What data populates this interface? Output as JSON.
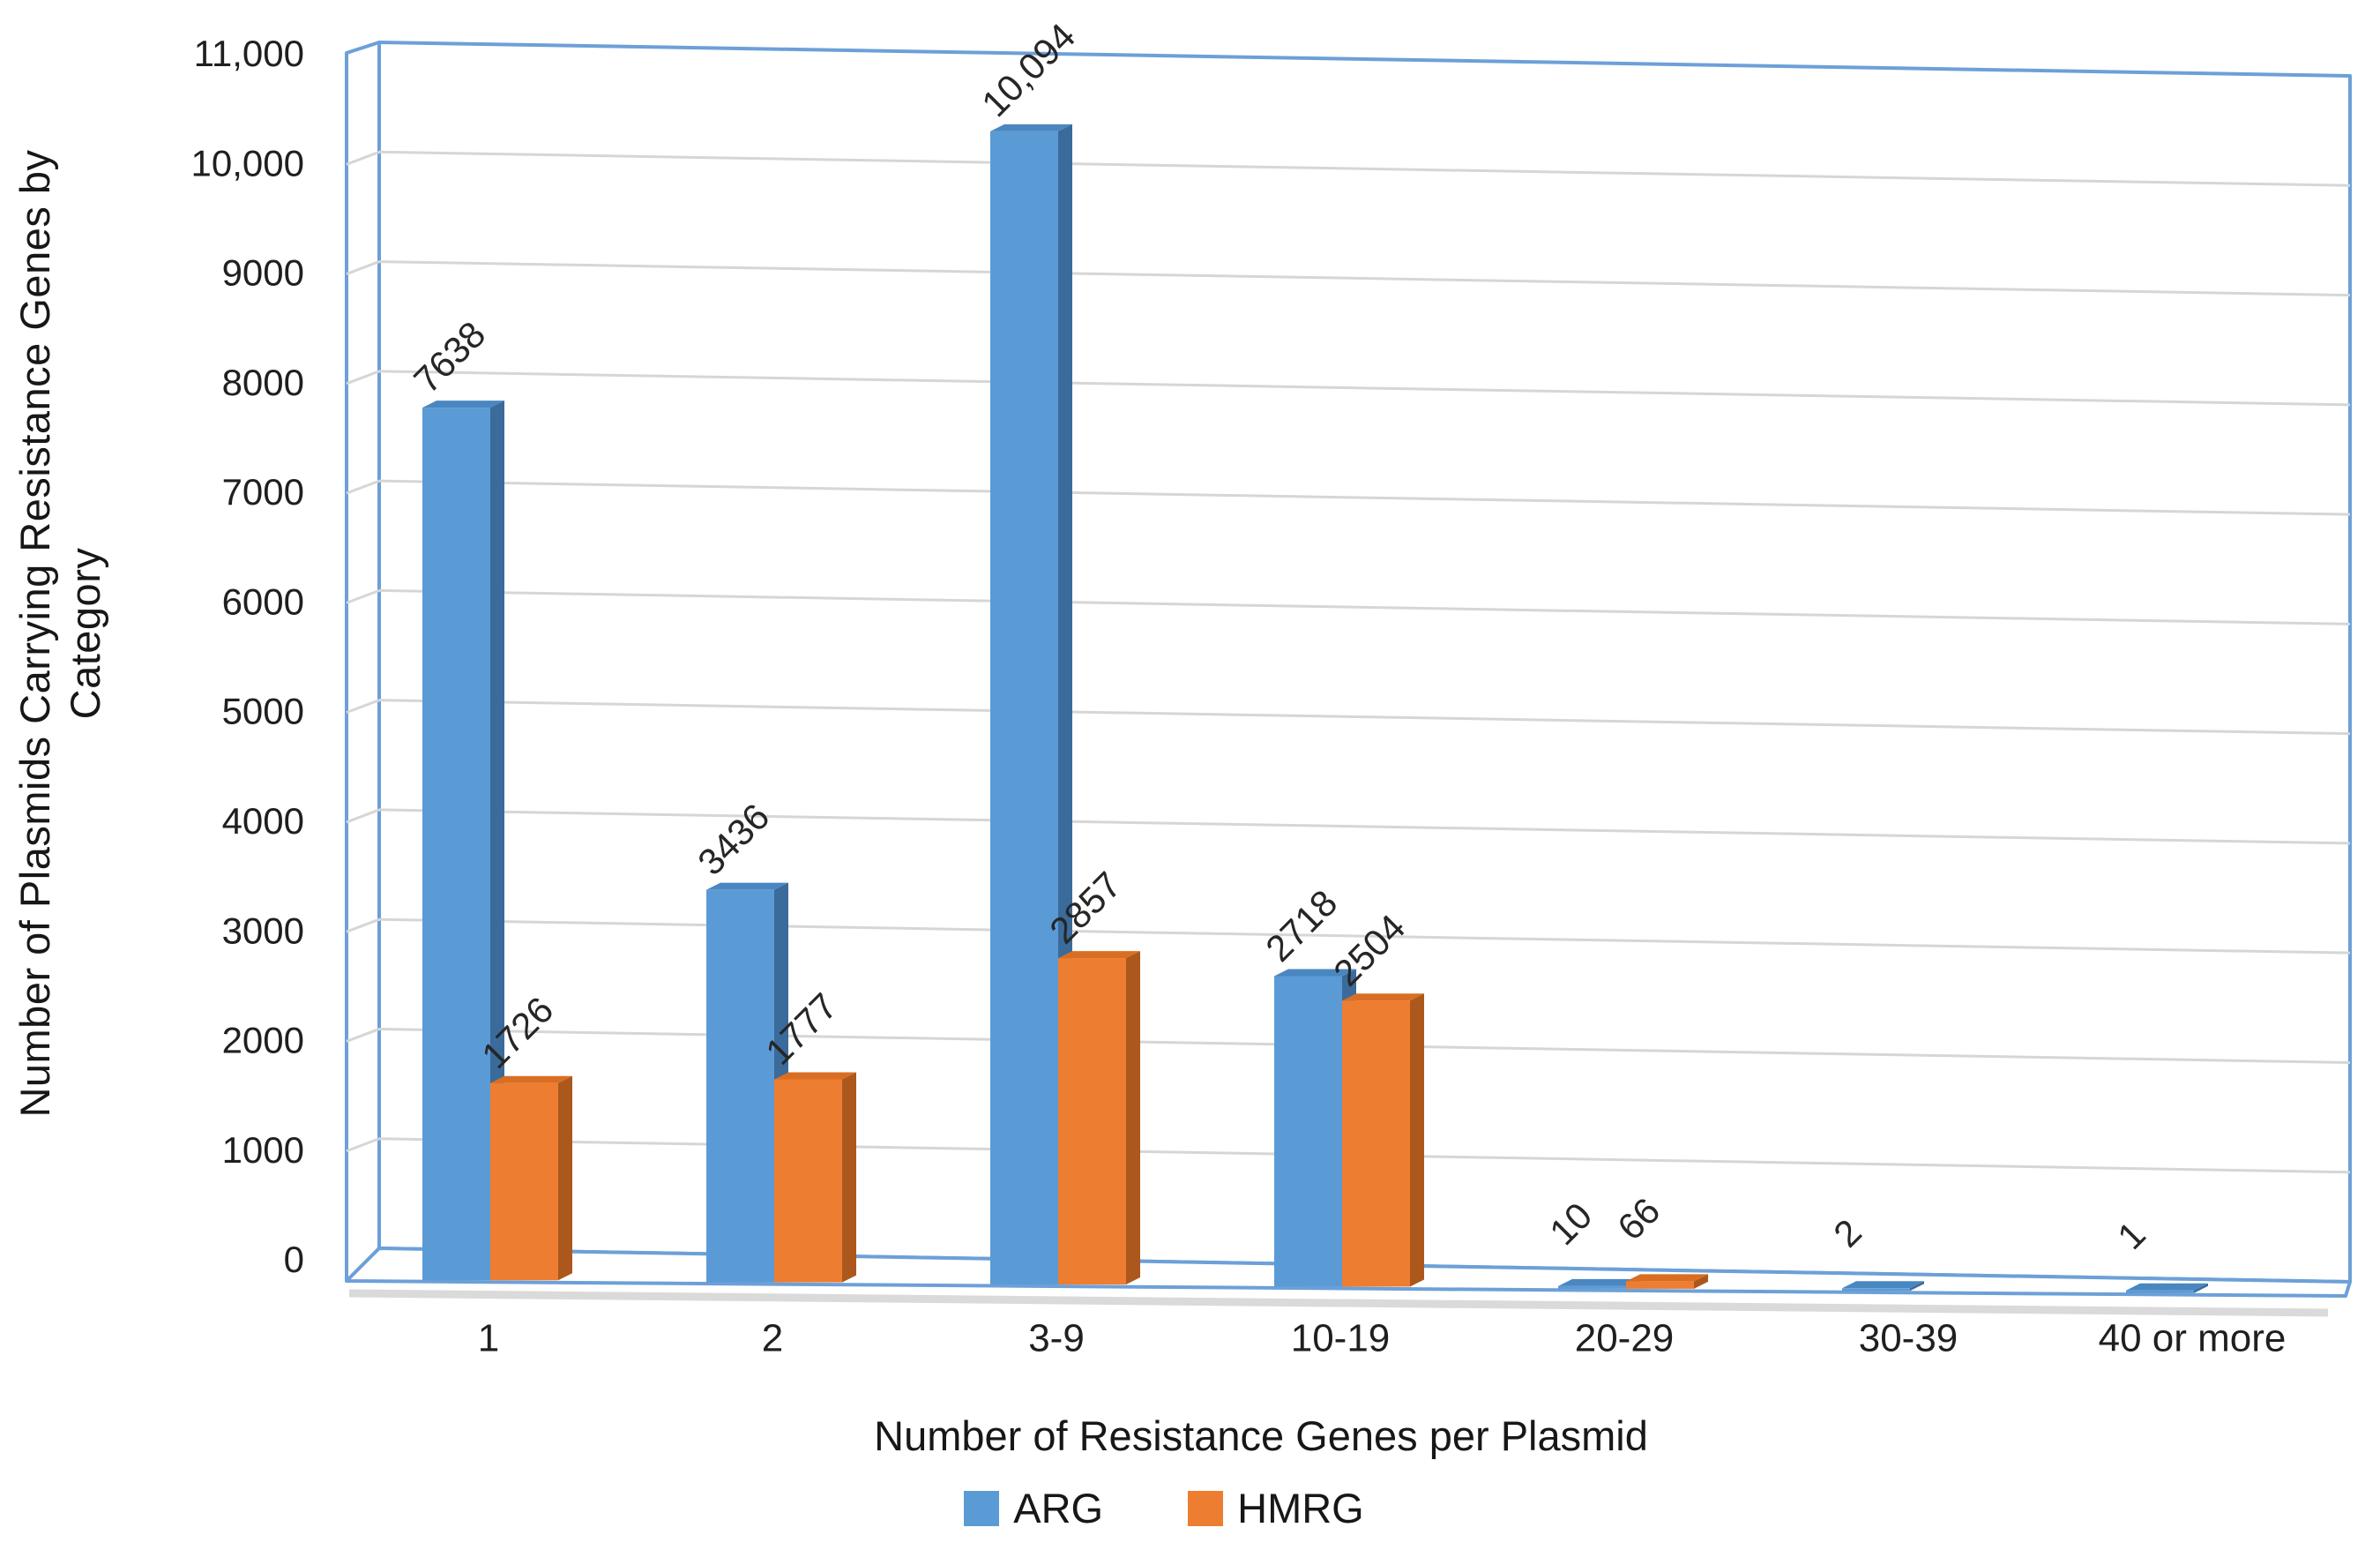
{
  "chart_data": {
    "type": "bar",
    "variant": "3d-clustered-column",
    "title": "",
    "categories": [
      "1",
      "2",
      "3-9",
      "10-19",
      "20-29",
      "30-39",
      "40 or more"
    ],
    "series": [
      {
        "name": "ARG",
        "color": "#5B9BD5",
        "values": [
          7638,
          3436,
          10094,
          2718,
          10,
          2,
          1
        ],
        "labels": [
          "7638",
          "3436",
          "10,094",
          "2718",
          "10",
          "2",
          "1"
        ]
      },
      {
        "name": "HMRG",
        "color": "#ED7D31",
        "values": [
          1726,
          1777,
          2857,
          2504,
          66,
          null,
          null
        ],
        "labels": [
          "1726",
          "1777",
          "2857",
          "2504",
          "66",
          null,
          null
        ]
      }
    ],
    "xlabel": "Number of Resistance Genes per Plasmid",
    "ylabel": "Number of Plasmids Carrying Resistance Genes by Category",
    "ylabel_lines": [
      "Number of Plasmids Carrying Resistance Genes by",
      "Category"
    ],
    "ylim": [
      0,
      11000
    ],
    "ytick_step": 1000,
    "ytick_labels": [
      "0",
      "1000",
      "2000",
      "3000",
      "4000",
      "5000",
      "6000",
      "7000",
      "8000",
      "9000",
      "10,000",
      "11,000"
    ],
    "grid": "horizontal",
    "legend_position": "bottom",
    "data_labels_rotated_degrees": -45
  },
  "legend": {
    "items": [
      {
        "label": "ARG",
        "color": "#5B9BD5"
      },
      {
        "label": "HMRG",
        "color": "#ED7D31"
      }
    ]
  },
  "colors": {
    "arg_front": "#5B9BD5",
    "arg_top": "#4A87C1",
    "arg_side": "#3A6B9B",
    "hmrg_front": "#ED7D31",
    "hmrg_top": "#D96E22",
    "hmrg_side": "#AC581C",
    "wall_outline": "#6CA0D8",
    "gridline": "#D6D6D6",
    "floor_shadow": "#DADADA",
    "text": "#1f1f1f"
  }
}
